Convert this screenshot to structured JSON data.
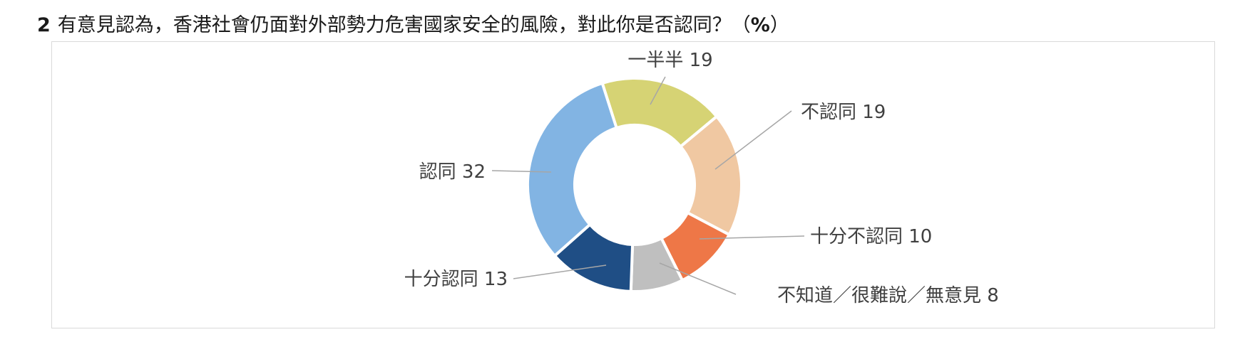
{
  "question": {
    "number": "2",
    "text": "有意見認為，香港社會仍面對外部勢力危害國家安全的風險，對此你是否認同？（",
    "unit": "%",
    "close": "）"
  },
  "chart_data": {
    "type": "donut",
    "unit": "%",
    "slices": [
      {
        "label": "一半半",
        "value": 19,
        "color": "#D6D374"
      },
      {
        "label": "不認同",
        "value": 19,
        "color": "#F0C8A2"
      },
      {
        "label": "十分不認同",
        "value": 10,
        "color": "#EE7747"
      },
      {
        "label": "不知道／很難說／無意見",
        "value": 8,
        "color": "#BFBFBF"
      },
      {
        "label": "十分認同",
        "value": 13,
        "color": "#1F4E85"
      },
      {
        "label": "認同",
        "value": 32,
        "color": "#82B4E3"
      }
    ]
  }
}
